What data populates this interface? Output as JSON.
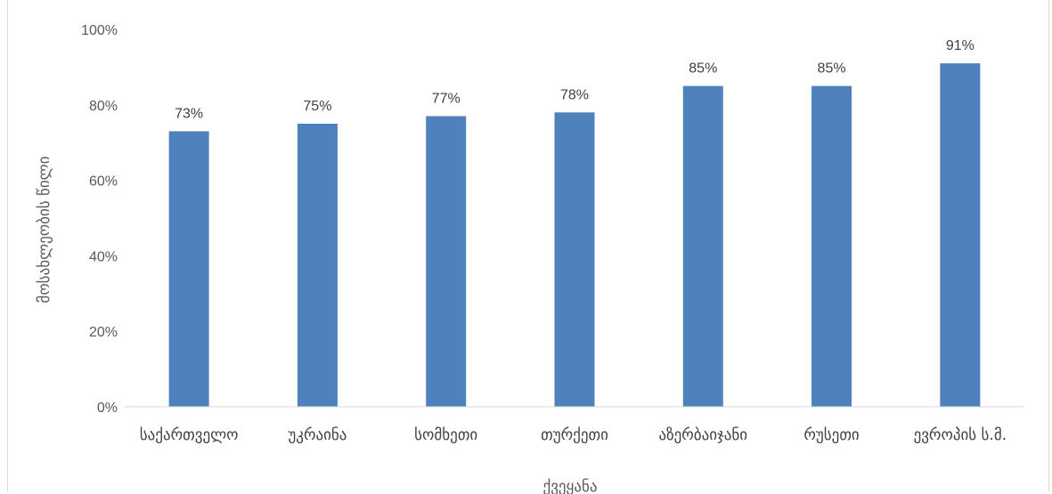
{
  "chart_data": {
    "type": "bar",
    "title": "",
    "xlabel": "ქვეყანა",
    "ylabel": "მოსახლეობის წილი",
    "categories": [
      "საქართველო",
      "უკრაინა",
      "სომხეთი",
      "თურქეთი",
      "აზერბაიჯანი",
      "რუსეთი",
      "ევროპის ს.მ."
    ],
    "values": [
      73,
      75,
      77,
      78,
      85,
      85,
      91
    ],
    "data_labels": [
      "73%",
      "75%",
      "77%",
      "78%",
      "85%",
      "85%",
      "91%"
    ],
    "ylim": [
      0,
      100
    ],
    "yticks": [
      "0%",
      "20%",
      "40%",
      "60%",
      "80%",
      "100%"
    ],
    "bar_color": "#4f81bd",
    "grid": false,
    "legend": "none"
  }
}
